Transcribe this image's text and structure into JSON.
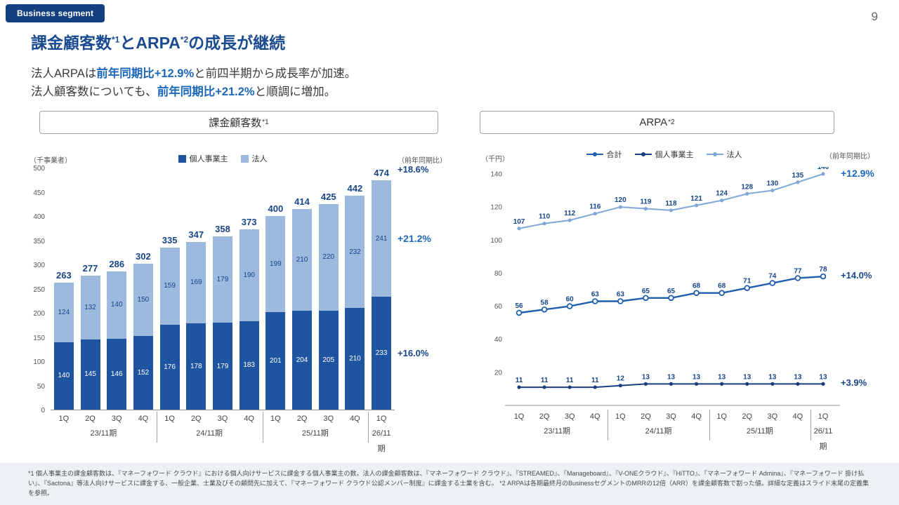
{
  "colors": {
    "navy": "#17458a",
    "accent": "#1b67b8",
    "bar_individual": "#1f55a0",
    "bar_corporate": "#9cbade",
    "line_total": "#1f5fae",
    "line_individual": "#173f7d",
    "line_corporate": "#7fa8d9"
  },
  "header": {
    "badge": "Business segment",
    "page_number": "9",
    "title_parts": {
      "t1": "課金顧客数",
      "sup1": "*1",
      "t2": "とARPA",
      "sup2": "*2",
      "t3": "の成長が継続"
    },
    "subtitle": {
      "l1a": "法人ARPAは",
      "l1b": "前年同期比+12.9%",
      "l1c": "と前四半期から成長率が加速。",
      "l2a": "法人顧客数についても、",
      "l2b": "前年同期比+21.2%",
      "l2c": "と順調に増加。"
    }
  },
  "chart_data": [
    {
      "type": "bar",
      "stacked": true,
      "title_main": "課金顧客数",
      "title_sup": "*1",
      "unit_label": "（千事業者）",
      "yoy_label": "（前年同期比）",
      "categories": [
        "1Q",
        "2Q",
        "3Q",
        "4Q",
        "1Q",
        "2Q",
        "3Q",
        "4Q",
        "1Q",
        "2Q",
        "3Q",
        "4Q",
        "1Q"
      ],
      "year_groups": [
        {
          "label": "23/11期",
          "span": 4
        },
        {
          "label": "24/11期",
          "span": 4
        },
        {
          "label": "25/11期",
          "span": 4
        },
        {
          "label": "26/11期",
          "span": 1
        }
      ],
      "series": [
        {
          "key": "individual",
          "name": "個人事業主",
          "color": "#1f55a0",
          "values": [
            140,
            145,
            146,
            152,
            176,
            178,
            179,
            183,
            201,
            204,
            205,
            210,
            233
          ]
        },
        {
          "key": "corporate",
          "name": "法人",
          "color": "#9cbade",
          "values": [
            124,
            132,
            140,
            150,
            159,
            169,
            179,
            190,
            199,
            210,
            220,
            232,
            241
          ]
        }
      ],
      "totals": [
        263,
        277,
        286,
        302,
        335,
        347,
        358,
        373,
        400,
        414,
        425,
        442,
        474
      ],
      "ylim": [
        0,
        500
      ],
      "yticks": [
        0,
        50,
        100,
        150,
        200,
        250,
        300,
        350,
        400,
        450,
        500
      ],
      "annotations": [
        {
          "text": "+18.6%",
          "target": "total",
          "emphasis": false
        },
        {
          "text": "+21.2%",
          "target": "corporate",
          "emphasis": true
        },
        {
          "text": "+16.0%",
          "target": "individual",
          "emphasis": false
        }
      ]
    },
    {
      "type": "line",
      "title_main": "ARPA",
      "title_sup": "*2",
      "unit_label": "（千円）",
      "yoy_label": "（前年同期比）",
      "categories": [
        "1Q",
        "2Q",
        "3Q",
        "4Q",
        "1Q",
        "2Q",
        "3Q",
        "4Q",
        "1Q",
        "2Q",
        "3Q",
        "4Q",
        "1Q"
      ],
      "year_groups": [
        {
          "label": "23/11期",
          "span": 4
        },
        {
          "label": "24/11期",
          "span": 4
        },
        {
          "label": "25/11期",
          "span": 4
        },
        {
          "label": "26/11期",
          "span": 1
        }
      ],
      "series": [
        {
          "key": "total",
          "name": "合計",
          "color": "#1f5fae",
          "marker": "open-circle",
          "values": [
            56,
            58,
            60,
            63,
            63,
            65,
            65,
            68,
            68,
            71,
            74,
            77,
            78
          ],
          "annotation": "+14.0%",
          "emphasis": false
        },
        {
          "key": "individual",
          "name": "個人事業主",
          "color": "#173f7d",
          "marker": "dot",
          "values": [
            11,
            11,
            11,
            11,
            12,
            13,
            13,
            13,
            13,
            13,
            13,
            13,
            13
          ],
          "annotation": "+3.9%",
          "emphasis": false
        },
        {
          "key": "corporate",
          "name": "法人",
          "color": "#7fa8d9",
          "marker": "dot",
          "values": [
            107,
            110,
            112,
            116,
            120,
            119,
            118,
            121,
            124,
            128,
            130,
            135,
            140
          ],
          "annotation": "+12.9%",
          "emphasis": true
        }
      ],
      "ylim": [
        0,
        140
      ],
      "yticks": [
        20,
        40,
        60,
        80,
        100,
        120,
        140
      ]
    }
  ],
  "footnote": "*1 個人事業主の課金顧客数は、『マネーフォワード クラウド』における個人向けサービスに課金する個人事業主の数。法人の課金顧客数は、『マネーフォワード クラウド』、『STREAMED』、『Manageboard』、『V-ONEクラウド』、『HiTTO』、『マネーフォワード Admina』、『マネーフォワード 掛け払い』、『Sactona』等法人向けサービスに課金する、一般企業、士業及びその顧問先に加えて、『マネーフォワード クラウド公認メンバー制度』に課金する士業を含む。 *2 ARPAは各期最終月のBusinessセグメントのMRRの12倍（ARR）を課金顧客数で割った値。詳細な定義はスライド末尾の定義集を参照。"
}
